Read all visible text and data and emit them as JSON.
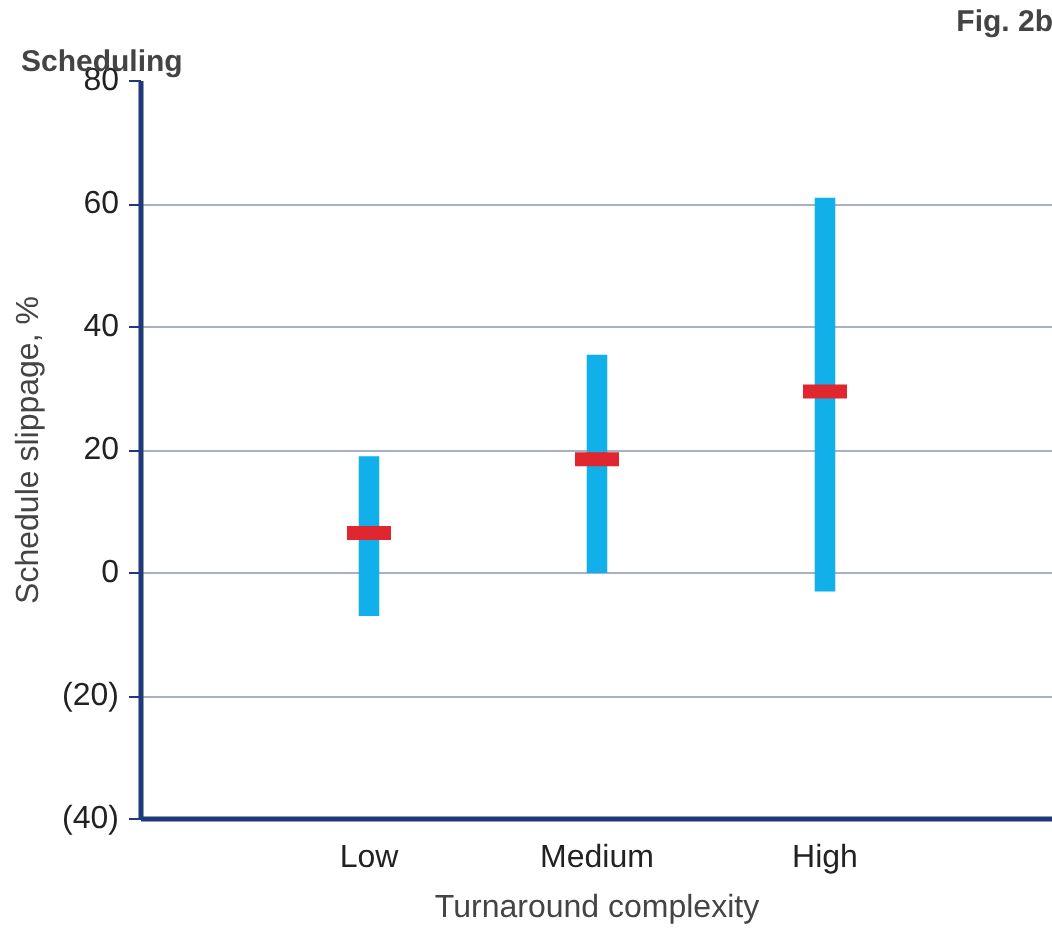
{
  "chart_data": {
    "type": "bar",
    "title": "Scheduling",
    "xlabel": "Turnaround complexity",
    "ylabel": "Schedule slippage, %",
    "annotations": [
      "Fig. 2b"
    ],
    "categories": [
      "Low",
      "Medium",
      "High"
    ],
    "series": [
      {
        "color": "#12b0ea",
        "base": [
          -7,
          0,
          -3
        ],
        "values": [
          26,
          35.5,
          64
        ]
      },
      {
        "type": "scatter",
        "color": "#e0262f",
        "x": [
          "Low",
          "Medium",
          "High"
        ],
        "values": [
          6.5,
          18.5,
          29.5
        ]
      }
    ],
    "ylim": [
      -40,
      80
    ],
    "yticks": [
      {
        "value": -40,
        "label": "(40)"
      },
      {
        "value": -20,
        "label": "(20)"
      },
      0,
      20,
      40,
      60,
      80
    ],
    "grid": "y"
  }
}
